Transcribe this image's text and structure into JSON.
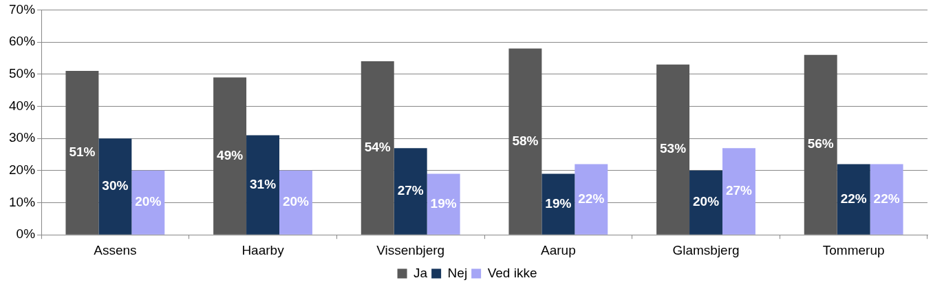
{
  "chart_data": {
    "type": "bar",
    "categories": [
      "Assens",
      "Haarby",
      "Vissenbjerg",
      "Aarup",
      "Glamsbjerg",
      "Tommerup"
    ],
    "series": [
      {
        "name": "Ja",
        "color": "#595959",
        "values": [
          51,
          49,
          54,
          58,
          53,
          56
        ],
        "value_labels": [
          "51%",
          "49%",
          "54%",
          "58%",
          "53%",
          "56%"
        ]
      },
      {
        "name": "Nej",
        "color": "#17365d",
        "values": [
          30,
          31,
          27,
          19,
          20,
          22
        ],
        "value_labels": [
          "30%",
          "31%",
          "27%",
          "19%",
          "20%",
          "22%"
        ]
      },
      {
        "name": "Ved ikke",
        "color": "#a6a6f6",
        "values": [
          20,
          20,
          19,
          22,
          27,
          22
        ],
        "value_labels": [
          "20%",
          "20%",
          "19%",
          "22%",
          "27%",
          "22%"
        ]
      }
    ],
    "ylim": [
      0,
      70
    ],
    "yticks": [
      {
        "value": 0,
        "label": "0%"
      },
      {
        "value": 10,
        "label": "10%"
      },
      {
        "value": 20,
        "label": "20%"
      },
      {
        "value": 30,
        "label": "30%"
      },
      {
        "value": 40,
        "label": "40%"
      },
      {
        "value": 50,
        "label": "50%"
      },
      {
        "value": 60,
        "label": "60%"
      },
      {
        "value": 70,
        "label": "70%"
      }
    ],
    "grid": "y",
    "legend": "bottom"
  }
}
